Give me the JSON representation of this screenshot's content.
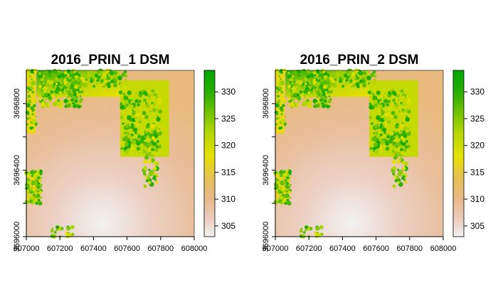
{
  "window": {
    "background": "#ffffff"
  },
  "colormap": {
    "name": "terrain",
    "stops": [
      {
        "value": 303,
        "color": "#f2f2f2"
      },
      {
        "value": 306,
        "color": "#eccfc2"
      },
      {
        "value": 310,
        "color": "#e8b88a"
      },
      {
        "value": 314,
        "color": "#e6c154"
      },
      {
        "value": 318,
        "color": "#e6e000"
      },
      {
        "value": 322,
        "color": "#b9d800"
      },
      {
        "value": 326,
        "color": "#74c400"
      },
      {
        "value": 330,
        "color": "#27ae00"
      },
      {
        "value": 334,
        "color": "#00a600"
      }
    ]
  },
  "chart_data": [
    {
      "type": "heatmap",
      "title": "2016_PRIN_1 DSM",
      "xlabel": "",
      "ylabel": "",
      "xlim": [
        607000,
        608000
      ],
      "ylim": [
        3696000,
        3697000
      ],
      "x_ticks": [
        "607000",
        "607200",
        "607400",
        "607600",
        "607800",
        "608000"
      ],
      "y_ticks": [
        "3696000",
        "3696400",
        "3696800"
      ],
      "legend": {
        "title": "",
        "range": [
          303,
          334
        ],
        "ticks": [
          "305",
          "310",
          "315",
          "320",
          "325",
          "330"
        ],
        "placement": "right"
      }
    },
    {
      "type": "heatmap",
      "title": "2016_PRIN_2 DSM",
      "xlabel": "",
      "ylabel": "",
      "xlim": [
        607000,
        608000
      ],
      "ylim": [
        3696000,
        3697000
      ],
      "x_ticks": [
        "607000",
        "607200",
        "607400",
        "607600",
        "607800",
        "608000"
      ],
      "y_ticks": [
        "3696000",
        "3696400",
        "3696800"
      ],
      "legend": {
        "title": "",
        "range": [
          303,
          334
        ],
        "ticks": [
          "305",
          "310",
          "315",
          "320",
          "325",
          "330"
        ],
        "placement": "right"
      }
    }
  ]
}
